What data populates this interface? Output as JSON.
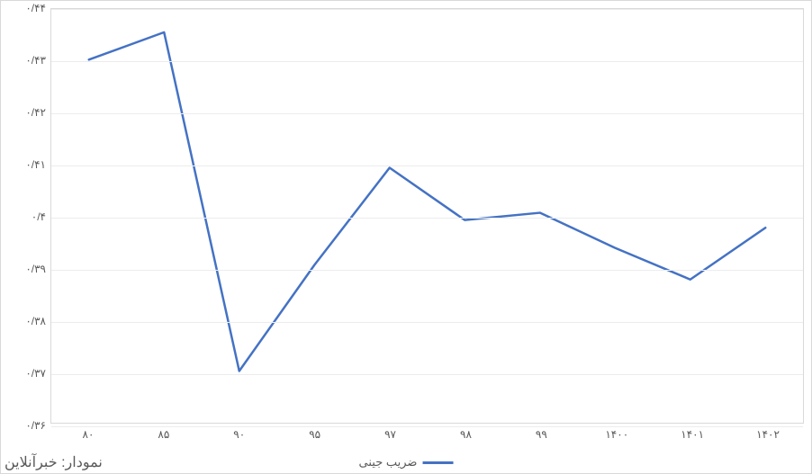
{
  "chart": {
    "type": "line",
    "source_note": "نمودار: خبرآنلاین",
    "legend_label": "ضریب جینی",
    "x_categories": [
      "۸۰",
      "۸۵",
      "۹۰",
      "۹۵",
      "۹۷",
      "۹۸",
      "۹۹",
      "۱۴۰۰",
      "۱۴۰۱",
      "۱۴۰۲"
    ],
    "y_values": [
      0.4302,
      0.4355,
      0.37,
      0.3905,
      0.4093,
      0.3992,
      0.4006,
      0.3938,
      0.3877,
      0.3977
    ],
    "y_tick_values": [
      0.36,
      0.37,
      0.38,
      0.39,
      0.4,
      0.41,
      0.42,
      0.43,
      0.44
    ],
    "y_tick_labels": [
      "۰/۳۶",
      "۰/۳۷",
      "۰/۳۸",
      "۰/۳۹",
      "۰/۴",
      "۰/۴۱",
      "۰/۴۲",
      "۰/۴۳",
      "۰/۴۴"
    ],
    "ylim": [
      0.36,
      0.44
    ],
    "line_color": "#4472c4",
    "line_width": 2.5,
    "grid_color": "#ececec",
    "border_color": "#d9d9d9",
    "background_color": "#ffffff",
    "label_fontsize": 12,
    "label_color": "#595959",
    "legend_fontsize": 13,
    "source_fontsize": 16
  }
}
